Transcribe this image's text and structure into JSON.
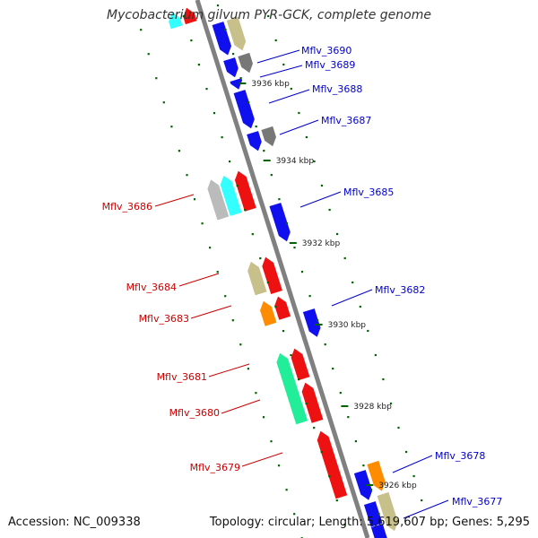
{
  "title": "Mycobacterium gilvum PYR-GCK, complete genome",
  "footer": {
    "accession": "Accession: NC_009338",
    "topology": "Topology: circular; Length: 5,619,607 bp; Genes: 5,295"
  },
  "colors": {
    "backbone": "#808080",
    "tick": "#006400",
    "label_fwd": "#0000cc",
    "label_rev": "#cc0000",
    "blue": "#1010ee",
    "darkgray": "#777777",
    "red": "#ee1111",
    "cyan": "#33ffff",
    "lightgray": "#bbbbbb",
    "khaki": "#c8c08a",
    "orange": "#ff8c00",
    "green": "#22ee99"
  },
  "scale_labels": [
    "3936 kbp",
    "3934 kbp",
    "3932 kbp",
    "3930 kbp",
    "3928 kbp",
    "3926 kbp"
  ],
  "gene_labels_right": [
    "Mflv_3690",
    "Mflv_3689",
    "Mflv_3688",
    "Mflv_3687",
    "Mflv_3685",
    "Mflv_3682",
    "Mflv_3678",
    "Mflv_3677"
  ],
  "gene_labels_left": [
    "Mflv_3686",
    "Mflv_3684",
    "Mflv_3683",
    "Mflv_3681",
    "Mflv_3680",
    "Mflv_3679"
  ],
  "genes": [
    {
      "color": "cyan",
      "strand": "-",
      "ring": 2
    },
    {
      "color": "red",
      "strand": "-",
      "ring": 1
    },
    {
      "color": "blue",
      "strand": "+",
      "ring": 1
    },
    {
      "color": "khaki",
      "strand": "+",
      "ring": 2
    },
    {
      "color": "blue",
      "strand": "+",
      "ring": 1
    },
    {
      "color": "darkgray",
      "strand": "+",
      "ring": 2
    },
    {
      "color": "blue",
      "strand": "+",
      "ring": 1
    },
    {
      "color": "blue",
      "strand": "+",
      "ring": 1
    },
    {
      "color": "blue",
      "strand": "+",
      "ring": 1
    },
    {
      "color": "darkgray",
      "strand": "+",
      "ring": 2
    },
    {
      "color": "lightgray",
      "strand": "-",
      "ring": 3
    },
    {
      "color": "cyan",
      "strand": "-",
      "ring": 2
    },
    {
      "color": "red",
      "strand": "-",
      "ring": 1
    },
    {
      "color": "blue",
      "strand": "+",
      "ring": 1
    },
    {
      "color": "khaki",
      "strand": "-",
      "ring": 2
    },
    {
      "color": "red",
      "strand": "-",
      "ring": 1
    },
    {
      "color": "orange",
      "strand": "-",
      "ring": 2
    },
    {
      "color": "red",
      "strand": "-",
      "ring": 1
    },
    {
      "color": "blue",
      "strand": "+",
      "ring": 1
    },
    {
      "color": "green",
      "strand": "-",
      "ring": 2
    },
    {
      "color": "red",
      "strand": "-",
      "ring": 1
    },
    {
      "color": "red",
      "strand": "-",
      "ring": 1
    },
    {
      "color": "red",
      "strand": "-",
      "ring": 1
    },
    {
      "color": "blue",
      "strand": "+",
      "ring": 1
    },
    {
      "color": "orange",
      "strand": "+",
      "ring": 2
    },
    {
      "color": "blue",
      "strand": "+",
      "ring": 1
    },
    {
      "color": "khaki",
      "strand": "+",
      "ring": 2
    },
    {
      "color": "blue",
      "strand": "+",
      "ring": 1
    }
  ]
}
